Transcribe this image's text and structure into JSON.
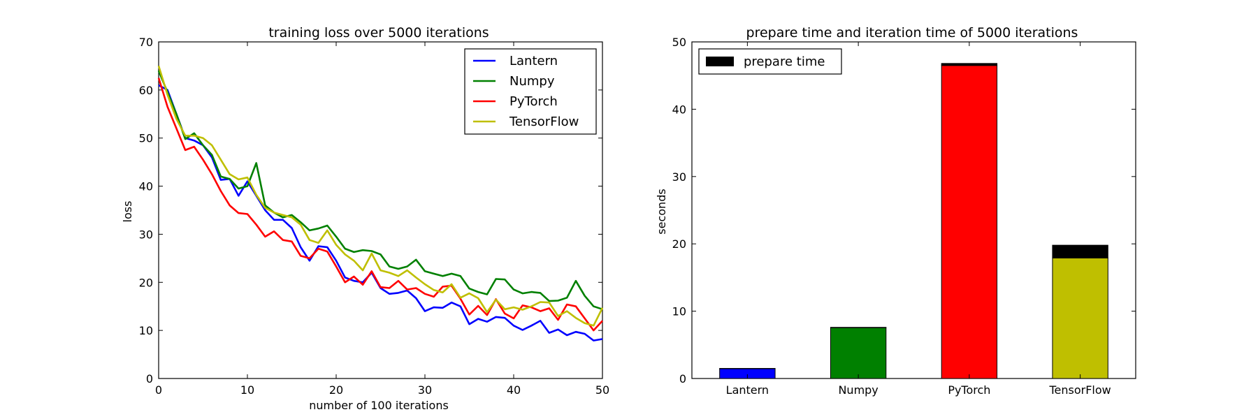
{
  "chart_data": [
    {
      "type": "line",
      "title": "training loss over 5000 iterations",
      "xlabel": "number of  100 iterations",
      "ylabel": "loss",
      "xlim": [
        0,
        50
      ],
      "ylim": [
        0,
        70
      ],
      "xticks": [
        0,
        10,
        20,
        30,
        40,
        50
      ],
      "yticks": [
        0,
        10,
        20,
        30,
        40,
        50,
        60,
        70
      ],
      "legend_position": "top-right",
      "x": [
        0,
        1,
        2,
        3,
        4,
        5,
        6,
        7,
        8,
        9,
        10,
        11,
        12,
        13,
        14,
        15,
        16,
        17,
        18,
        19,
        20,
        21,
        22,
        23,
        24,
        25,
        26,
        27,
        28,
        29,
        30,
        31,
        32,
        33,
        34,
        35,
        36,
        37,
        38,
        39,
        40,
        41,
        42,
        43,
        44,
        45,
        46,
        47,
        48,
        49,
        50
      ],
      "series": [
        {
          "name": "Lantern",
          "color": "#0000ff",
          "values": [
            61,
            60,
            55,
            50,
            49.5,
            48.5,
            46,
            41.3,
            41.5,
            38,
            41,
            38,
            35,
            33,
            33,
            31.3,
            27.3,
            24.5,
            27.5,
            27.3,
            24.5,
            21,
            20.3,
            20,
            22,
            18.8,
            17.6,
            17.8,
            18.3,
            16.7,
            14,
            14.8,
            14.7,
            15.8,
            15,
            11.3,
            12.4,
            11.8,
            12.8,
            12.6,
            11,
            10.1,
            11,
            12,
            9.5,
            10.2,
            9,
            9.7,
            9.3,
            7.9,
            8.2
          ]
        },
        {
          "name": "Numpy",
          "color": "#008000",
          "values": [
            64,
            59.5,
            55,
            49.8,
            51,
            48.5,
            46.5,
            42,
            41.5,
            39.5,
            40,
            44.8,
            36,
            34.5,
            33.5,
            34,
            32.5,
            30.8,
            31.2,
            31.8,
            29.5,
            27,
            26.3,
            26.7,
            26.5,
            25.8,
            23.3,
            22.8,
            23.3,
            24.7,
            22.3,
            21.8,
            21.3,
            21.8,
            21.3,
            18.7,
            18,
            17.5,
            20.7,
            20.6,
            18.5,
            17.7,
            18,
            17.8,
            16.1,
            16.2,
            16.8,
            20.3,
            17.2,
            15,
            14.4
          ]
        },
        {
          "name": "PyTorch",
          "color": "#ff0000",
          "values": [
            62.5,
            56.5,
            52,
            47.5,
            48.2,
            45.5,
            42.5,
            39,
            36,
            34.4,
            34.2,
            32,
            29.5,
            30.6,
            28.8,
            28.5,
            25.5,
            25,
            27,
            26.4,
            23.3,
            20,
            21.2,
            19.5,
            22.3,
            19,
            18.8,
            20.3,
            18.5,
            18.8,
            17.6,
            17,
            19.1,
            19.3,
            16.6,
            13.3,
            15.1,
            13.2,
            16.5,
            13.5,
            12.5,
            15.2,
            14.8,
            14,
            14.6,
            12.2,
            15.4,
            15,
            12.5,
            10,
            12
          ]
        },
        {
          "name": "TensorFlow",
          "color": "#bfbf00",
          "values": [
            65,
            59,
            54,
            50.5,
            50.5,
            50,
            48.5,
            45.5,
            42.5,
            41.4,
            41.8,
            38.2,
            35.5,
            34.5,
            34,
            33.5,
            32,
            28.8,
            28.2,
            30.8,
            27.8,
            25.8,
            24.5,
            22.5,
            26,
            22.5,
            22,
            21.3,
            22.5,
            21,
            19.6,
            18.4,
            17.9,
            19.6,
            16.8,
            17.7,
            16.7,
            13.8,
            16.4,
            14.4,
            14.8,
            14.3,
            15,
            15.9,
            15.8,
            13,
            14,
            12.6,
            11.5,
            11,
            14.7
          ]
        }
      ]
    },
    {
      "type": "bar",
      "stacked": true,
      "title": "prepare time and iteration time of 5000 iterations",
      "xlabel": "",
      "ylabel": "seconds",
      "ylim": [
        0,
        50
      ],
      "yticks": [
        0,
        10,
        20,
        30,
        40,
        50
      ],
      "legend_position": "top-left",
      "categories": [
        "Lantern",
        "Numpy",
        "PyTorch",
        "TensorFlow"
      ],
      "colors": [
        "#0000ff",
        "#008000",
        "#ff0000",
        "#bfbf00"
      ],
      "prepare_color": "#000000",
      "series": [
        {
          "values": [
            1.45,
            7.55,
            46.5,
            17.9
          ]
        },
        {
          "name": "prepare time",
          "values": [
            0.05,
            0.05,
            0.3,
            1.9
          ]
        }
      ]
    }
  ]
}
